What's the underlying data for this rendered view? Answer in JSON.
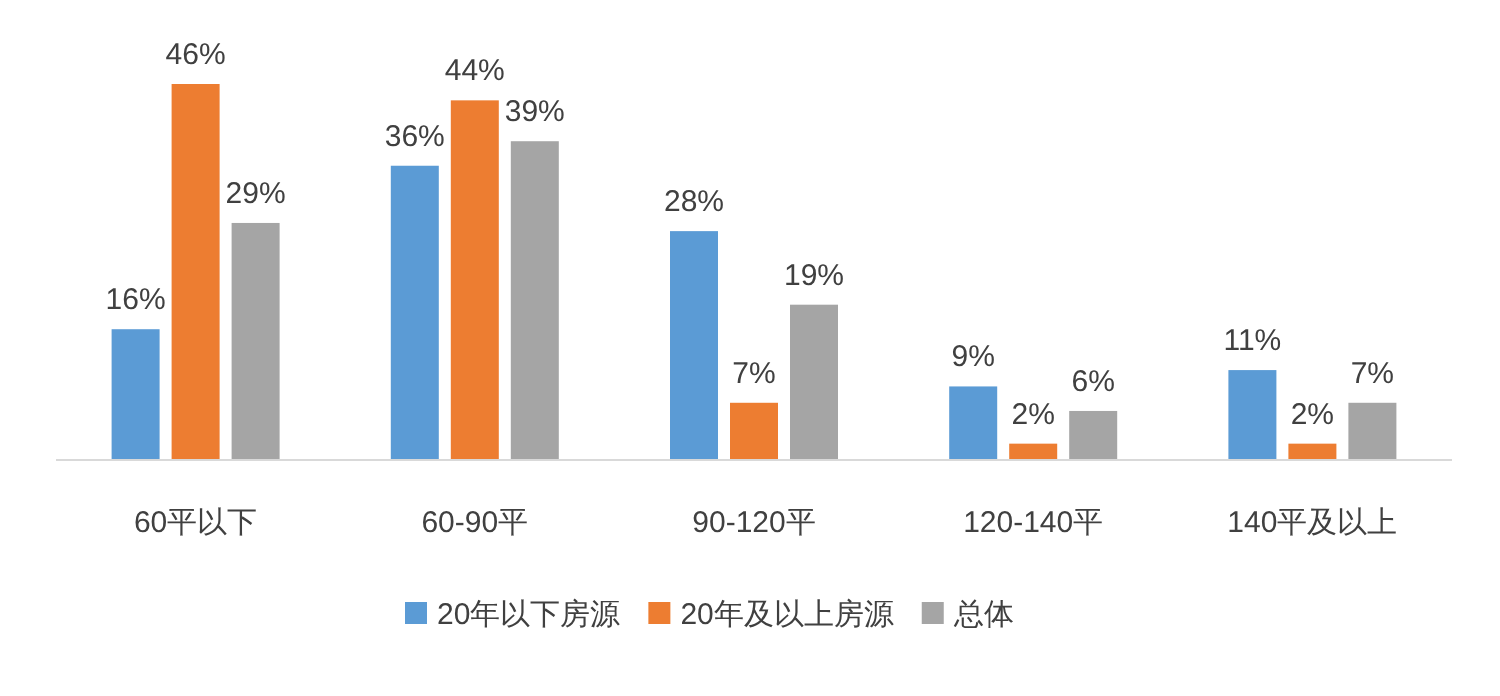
{
  "chart_data": {
    "type": "bar",
    "categories": [
      "60平以下",
      "60-90平",
      "90-120平",
      "120-140平",
      "140平及以上"
    ],
    "series": [
      {
        "name": "20年以下房源",
        "color": "#5b9bd5",
        "values": [
          16,
          36,
          28,
          9,
          11
        ],
        "value_labels": [
          "16%",
          "36%",
          "28%",
          "9%",
          "11%"
        ]
      },
      {
        "name": "20年及以上房源",
        "color": "#ed7d31",
        "values": [
          46,
          44,
          7,
          2,
          2
        ],
        "value_labels": [
          "46%",
          "44%",
          "7%",
          "2%",
          "2%"
        ]
      },
      {
        "name": "总体",
        "color": "#a5a5a5",
        "values": [
          29,
          39,
          19,
          6,
          7
        ],
        "value_labels": [
          "29%",
          "39%",
          "19%",
          "6%",
          "7%"
        ]
      }
    ],
    "legend": "bottom"
  }
}
